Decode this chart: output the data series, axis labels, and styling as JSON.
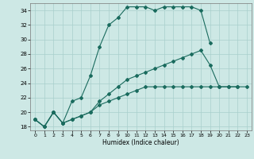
{
  "xlabel": "Humidex (Indice chaleur)",
  "background_color": "#cde8e5",
  "grid_color": "#a8cfcc",
  "line_color": "#1a6b5e",
  "xlim": [
    -0.5,
    23.5
  ],
  "ylim": [
    17.5,
    35.0
  ],
  "xticks": [
    0,
    1,
    2,
    3,
    4,
    5,
    6,
    7,
    8,
    9,
    10,
    11,
    12,
    13,
    14,
    15,
    16,
    17,
    18,
    19,
    20,
    21,
    22,
    23
  ],
  "yticks": [
    18,
    20,
    22,
    24,
    26,
    28,
    30,
    32,
    34
  ],
  "line1_x": [
    0,
    1,
    2,
    3,
    4,
    5,
    6,
    7,
    8,
    9,
    10,
    11,
    12,
    13,
    14,
    15,
    16,
    17,
    18,
    19
  ],
  "line1_y": [
    19,
    18,
    20,
    18.5,
    21.5,
    22.0,
    25.0,
    29.0,
    32.0,
    33.0,
    34.5,
    34.5,
    34.5,
    34.0,
    34.5,
    34.5,
    34.5,
    34.5,
    34.0,
    29.5
  ],
  "line2_x": [
    0,
    1,
    2,
    3,
    4,
    5,
    6,
    7,
    8,
    9,
    10,
    11,
    12,
    13,
    14,
    15,
    16,
    17,
    18,
    19,
    20,
    21,
    22
  ],
  "line2_y": [
    19,
    18,
    20,
    18.5,
    19.0,
    19.5,
    20.0,
    21.5,
    22.5,
    23.5,
    24.5,
    25.0,
    25.5,
    26.0,
    26.5,
    27.0,
    27.5,
    28.0,
    28.5,
    26.5,
    23.5,
    23.5,
    23.5
  ],
  "line3_x": [
    0,
    1,
    2,
    3,
    4,
    5,
    6,
    7,
    8,
    9,
    10,
    11,
    12,
    13,
    14,
    15,
    16,
    17,
    18,
    19,
    20,
    21,
    22,
    23
  ],
  "line3_y": [
    19,
    18,
    20,
    18.5,
    19.0,
    19.5,
    20.0,
    21.0,
    21.5,
    22.0,
    22.5,
    23.0,
    23.5,
    23.5,
    23.5,
    23.5,
    23.5,
    23.5,
    23.5,
    23.5,
    23.5,
    23.5,
    23.5,
    23.5
  ]
}
